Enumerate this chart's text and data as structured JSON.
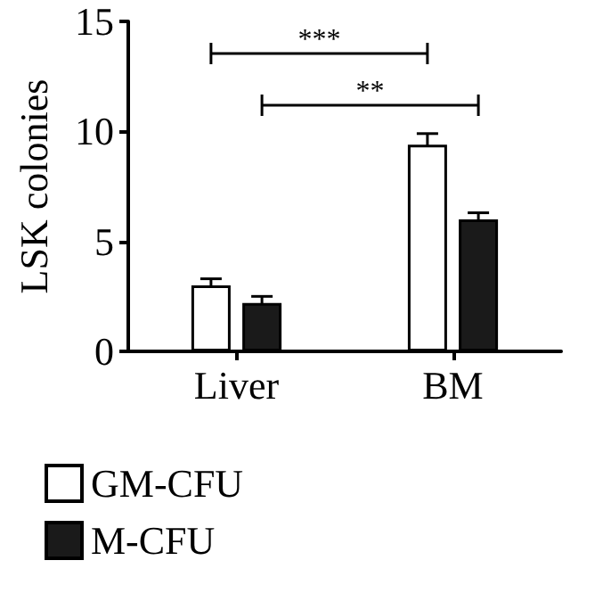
{
  "chart_data": {
    "type": "bar",
    "ylabel": "LSK colonies",
    "categories": [
      "Liver",
      "BM"
    ],
    "series": [
      {
        "name": "GM-CFU",
        "color": "#ffffff",
        "values": [
          3.0,
          9.4
        ],
        "errors": [
          0.3,
          0.5
        ]
      },
      {
        "name": "M-CFU",
        "color": "#1a1a1a",
        "values": [
          2.2,
          6.0
        ],
        "errors": [
          0.3,
          0.3
        ]
      }
    ],
    "ylim": [
      0,
      15
    ],
    "yticks": [
      0,
      5,
      10,
      15
    ],
    "legend": "bottom left",
    "annotations": [
      "***",
      "**"
    ]
  }
}
